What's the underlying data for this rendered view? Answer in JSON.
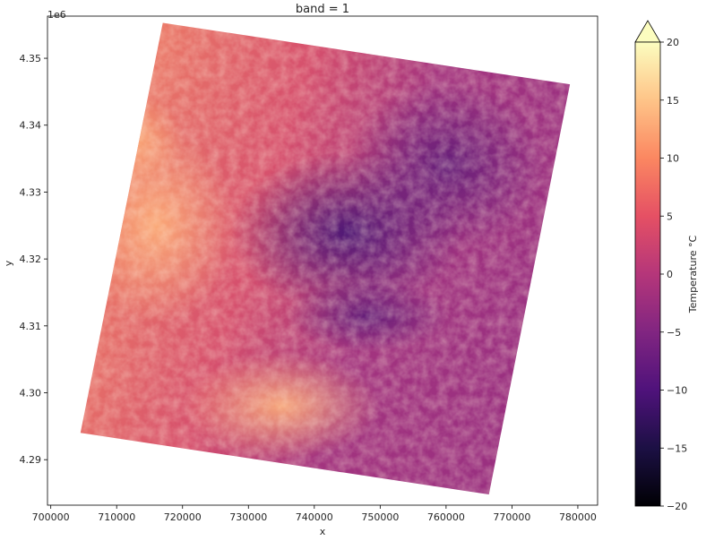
{
  "chart_data": {
    "type": "heatmap",
    "title": "band = 1",
    "xlabel": "x",
    "ylabel": "y",
    "x_ticks": [
      700000,
      710000,
      720000,
      730000,
      740000,
      750000,
      760000,
      770000,
      780000
    ],
    "y_ticks": [
      4.29,
      4.3,
      4.31,
      4.32,
      4.33,
      4.34,
      4.35
    ],
    "x_tick_labels": [
      "700000",
      "710000",
      "720000",
      "730000",
      "740000",
      "750000",
      "760000",
      "770000",
      "780000"
    ],
    "y_tick_labels": [
      "4.29",
      "4.30",
      "4.31",
      "4.32",
      "4.33",
      "4.34",
      "4.35"
    ],
    "y_offset_label": "1e6",
    "xlim": [
      699500,
      783000
    ],
    "ylim": [
      4.2832,
      4.3563
    ],
    "colormap": "magma",
    "colorbar": {
      "label": "Temperature °C",
      "vmin": -20,
      "vmax": 20,
      "extend": "max",
      "ticks": [
        -20,
        -15,
        -10,
        -5,
        0,
        5,
        10,
        15,
        20
      ],
      "tick_labels": [
        "−20",
        "−15",
        "−10",
        "−5",
        "0",
        "5",
        "10",
        "15",
        "20"
      ]
    },
    "footprint_corners": [
      {
        "x": 717000,
        "y": 4.3553
      },
      {
        "x": 778800,
        "y": 4.3461
      },
      {
        "x": 766500,
        "y": 4.2848
      },
      {
        "x": 704500,
        "y": 4.294
      }
    ],
    "cold_region_centers": [
      {
        "x": 745000,
        "y": 4.324,
        "temp": -11
      },
      {
        "x": 760000,
        "y": 4.334,
        "temp": -9
      },
      {
        "x": 748000,
        "y": 4.3115,
        "temp": -12
      }
    ],
    "warm_region_centers": [
      {
        "x": 716000,
        "y": 4.325,
        "temp": 15
      },
      {
        "x": 735000,
        "y": 4.298,
        "temp": 12
      },
      {
        "x": 712000,
        "y": 4.338,
        "temp": 10
      }
    ]
  }
}
